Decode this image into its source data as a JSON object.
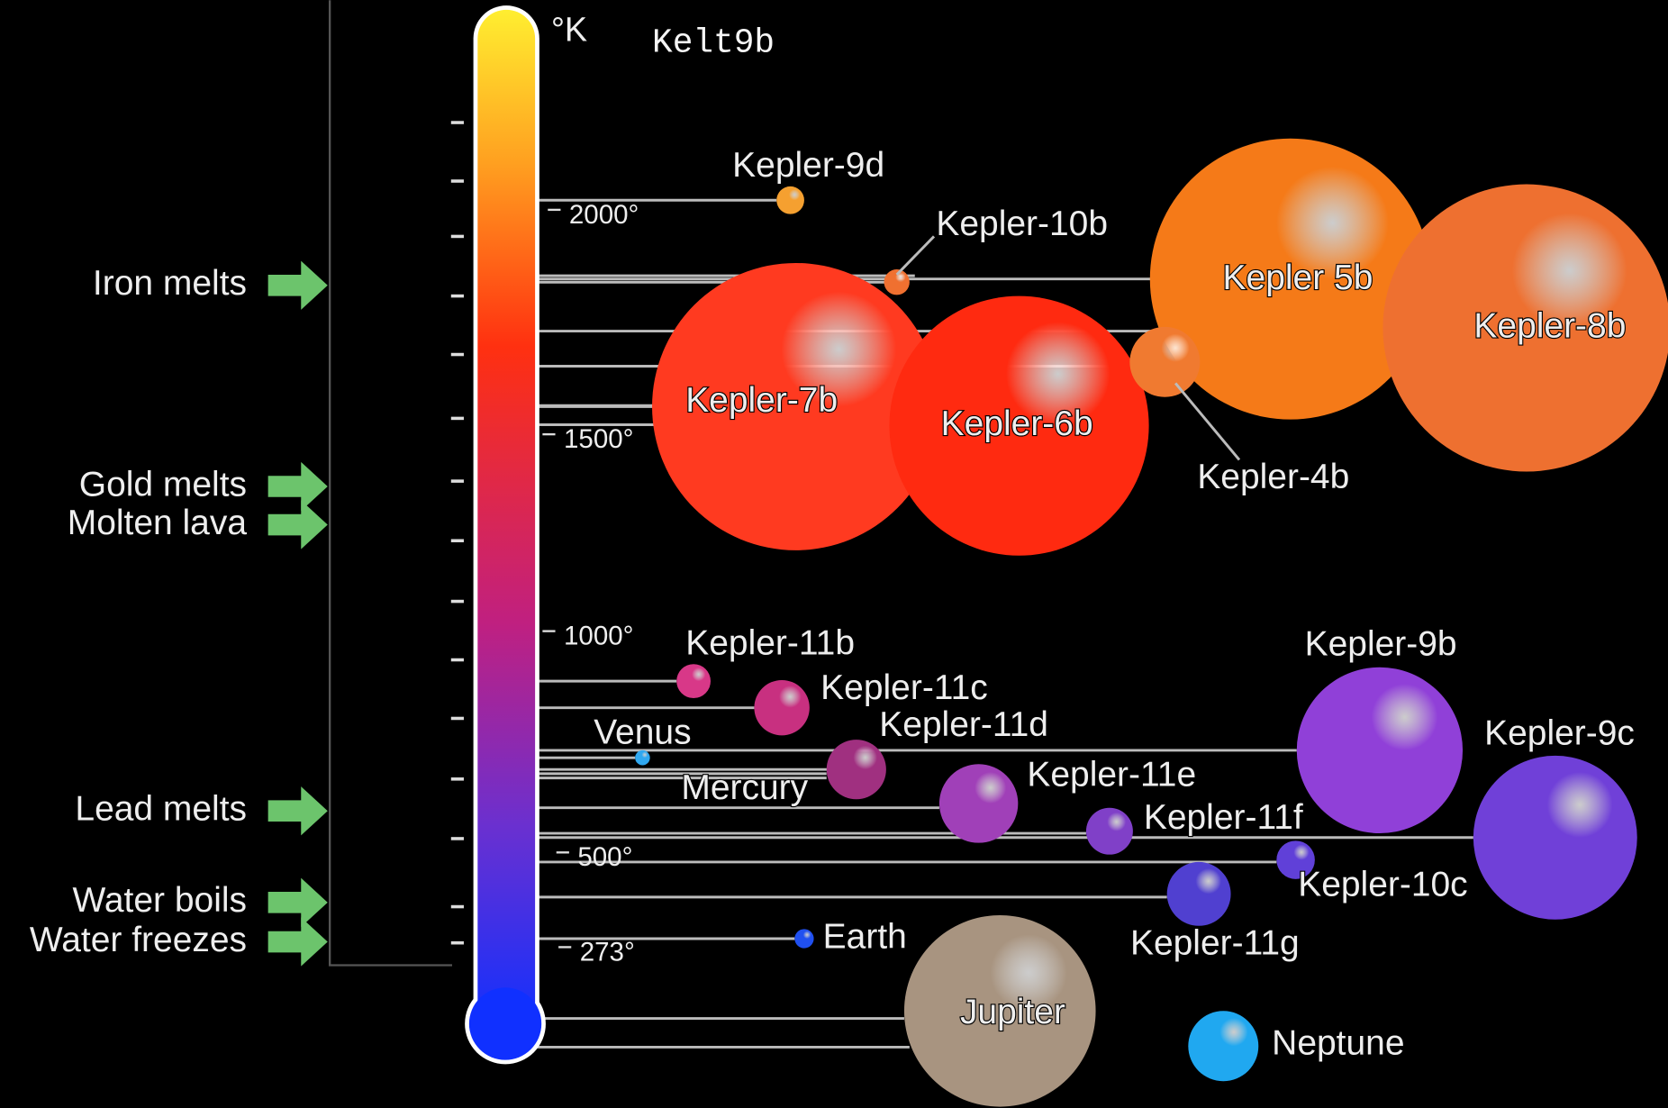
{
  "unit": "°K",
  "title": "Kelt9b",
  "scale_labels": [
    "2000°",
    "1500°",
    "1000°",
    "500°",
    "273°"
  ],
  "markers": [
    "Iron melts",
    "Gold melts",
    "Molten lava",
    "Lead melts",
    "Water boils",
    "Water freezes"
  ],
  "planets": [
    "Kepler-9d",
    "Kepler-10b",
    "Kepler 5b",
    "Kepler-8b",
    "Kepler-7b",
    "Kepler-6b",
    "Kepler-4b",
    "Kepler-11b",
    "Kepler-11c",
    "Venus",
    "Kepler-11d",
    "Mercury",
    "Kepler-11e",
    "Kepler-11f",
    "Kepler-9b",
    "Kepler-9c",
    "Kepler-10c",
    "Kepler-11g",
    "Earth",
    "Jupiter",
    "Neptune"
  ]
}
